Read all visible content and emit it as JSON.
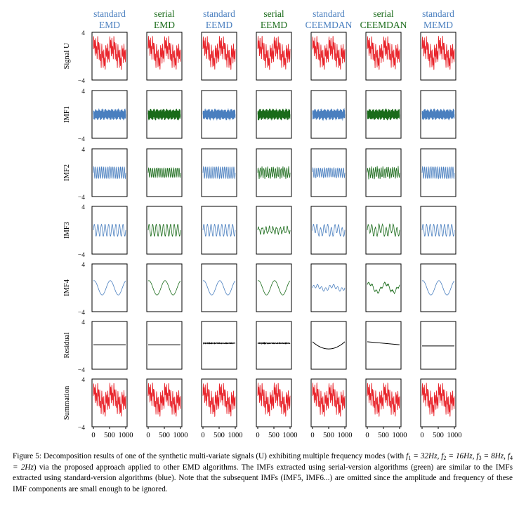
{
  "figure": {
    "column_headers": [
      {
        "top": "standard",
        "bottom": "EMD",
        "color": "#4a7fbf"
      },
      {
        "top": "serial",
        "bottom": "EMD",
        "color": "#1a6b1a"
      },
      {
        "top": "standard",
        "bottom": "EEMD",
        "color": "#4a7fbf"
      },
      {
        "top": "serial",
        "bottom": "EEMD",
        "color": "#1a6b1a"
      },
      {
        "top": "standard",
        "bottom": "CEEMDAN",
        "color": "#4a7fbf"
      },
      {
        "top": "serial",
        "bottom": "CEEMDAN",
        "color": "#1a6b1a"
      },
      {
        "top": "standard",
        "bottom": "MEMD",
        "color": "#4a7fbf"
      }
    ],
    "row_labels": [
      "Signal U",
      "IMF1",
      "IMF2",
      "IMF3",
      "IMF4",
      "Residual",
      "Summation"
    ],
    "y_tick_top": "4",
    "y_tick_bottom": "−4",
    "x_ticks": [
      "0",
      "500",
      "1000"
    ],
    "colors": {
      "signal": "#e8232a",
      "standard": "#4a7fbf",
      "serial": "#1a6b1a",
      "residual": "#000000"
    }
  },
  "chart_data": {
    "type": "line",
    "grid_rows": 7,
    "grid_cols": 7,
    "ylim": [
      -4,
      4
    ],
    "xlim": [
      0,
      1000
    ],
    "grid": false,
    "series_notes": "Synthetic multi-variate signal U with frequency modes f1=32Hz, f2=16Hz, f3=8Hz, f4=2Hz"
  },
  "caption": {
    "label": "Figure 5:",
    "text_1": " Decomposition results of one of the synthetic multi-variate signals (U) exhibiting multiple frequency modes (with ",
    "f1": "f",
    "f1_sub": "1",
    "f1_val": " = 32Hz, ",
    "f2": "f",
    "f2_sub": "2",
    "f2_val": " = 16Hz, ",
    "f3": "f",
    "f3_sub": "3",
    "f3_val": " = 8Hz, ",
    "f4": "f",
    "f4_sub": "4",
    "f4_val": " = 2Hz",
    "text_2": ") via the proposed approach applied to other EMD algorithms. The IMFs extracted using serial-version algorithms (green) are similar to the IMFs extracted using standard-version algorithms (blue). Note that the subsequent IMFs (IMF5, IMF6...) are omitted since the amplitude and frequency of these IMF components are small enough to be ignored."
  }
}
